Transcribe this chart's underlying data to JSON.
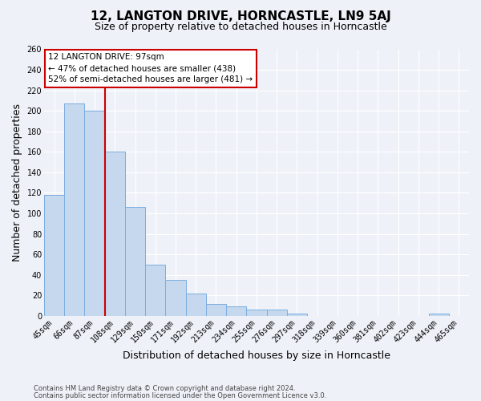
{
  "title": "12, LANGTON DRIVE, HORNCASTLE, LN9 5AJ",
  "subtitle": "Size of property relative to detached houses in Horncastle",
  "bar_labels": [
    "45sqm",
    "66sqm",
    "87sqm",
    "108sqm",
    "129sqm",
    "150sqm",
    "171sqm",
    "192sqm",
    "213sqm",
    "234sqm",
    "255sqm",
    "276sqm",
    "297sqm",
    "318sqm",
    "339sqm",
    "360sqm",
    "381sqm",
    "402sqm",
    "423sqm",
    "444sqm",
    "465sqm"
  ],
  "bar_values": [
    118,
    207,
    200,
    160,
    106,
    50,
    35,
    22,
    12,
    9,
    6,
    6,
    2,
    0,
    0,
    0,
    0,
    0,
    0,
    2,
    0
  ],
  "bar_color": "#c5d8ed",
  "bar_edge_color": "#7aade0",
  "red_line_label": "12 LANGTON DRIVE: 97sqm",
  "annotation_line1": "← 47% of detached houses are smaller (438)",
  "annotation_line2": "52% of semi-detached houses are larger (481) →",
  "xlabel": "Distribution of detached houses by size in Horncastle",
  "ylabel": "Number of detached properties",
  "ylim": [
    0,
    260
  ],
  "yticks": [
    0,
    20,
    40,
    60,
    80,
    100,
    120,
    140,
    160,
    180,
    200,
    220,
    240,
    260
  ],
  "footnote1": "Contains HM Land Registry data © Crown copyright and database right 2024.",
  "footnote2": "Contains public sector information licensed under the Open Government Licence v3.0.",
  "background_color": "#eef2f8",
  "grid_color": "#ffffff",
  "title_fontsize": 11,
  "subtitle_fontsize": 9,
  "axis_label_fontsize": 9,
  "tick_fontsize": 7,
  "annotation_box_color": "#ffffff",
  "annotation_border_color": "#cc0000",
  "red_line_color": "#cc0000"
}
